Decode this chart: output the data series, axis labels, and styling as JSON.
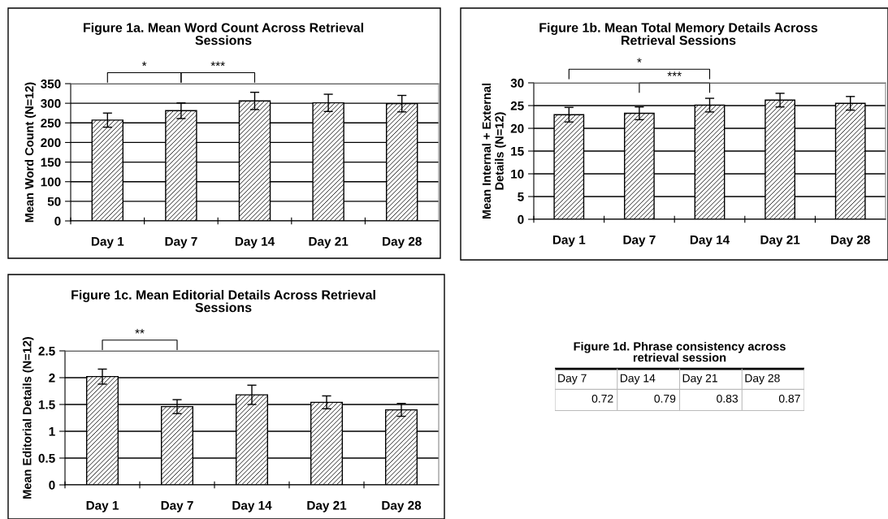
{
  "chart_data": [
    {
      "type": "bar",
      "title": "Figure 1a. Mean Word Count Across Retrieval\nSessions",
      "ylabel": "Mean Word Count (N=12)",
      "categories": [
        "Day 1",
        "Day 7",
        "Day 14",
        "Day 21",
        "Day 28"
      ],
      "values": [
        257,
        281,
        306,
        301,
        299
      ],
      "errors": [
        18,
        20,
        22,
        22,
        21
      ],
      "color": "#000000",
      "ylim": [
        0,
        350
      ],
      "yticks": [
        0,
        50,
        100,
        150,
        200,
        250,
        300,
        350
      ],
      "grid": "y",
      "annotations": [
        "*",
        "***"
      ]
    },
    {
      "type": "bar",
      "title": "Figure 1b. Mean Total Memory Details Across\nRetrieval Sessions",
      "ylabel": "Mean Internal + External\nDetails (N=12)",
      "categories": [
        "Day 1",
        "Day 7",
        "Day 14",
        "Day 21",
        "Day 28"
      ],
      "values": [
        23.0,
        23.3,
        25.1,
        26.2,
        25.5
      ],
      "errors": [
        1.6,
        1.4,
        1.5,
        1.5,
        1.5
      ],
      "color": "#000000",
      "ylim": [
        0,
        30
      ],
      "yticks": [
        0,
        5,
        10,
        15,
        20,
        25,
        30
      ],
      "grid": "y",
      "annotations": [
        "*",
        "***"
      ]
    },
    {
      "type": "bar",
      "title": "Figure 1c. Mean Editorial Details Across Retrieval\nSessions",
      "ylabel": "Mean Editorial Details (N=12)",
      "categories": [
        "Day 1",
        "Day 7",
        "Day 14",
        "Day 21",
        "Day 28"
      ],
      "values": [
        2.02,
        1.46,
        1.68,
        1.54,
        1.4
      ],
      "errors": [
        0.14,
        0.13,
        0.18,
        0.12,
        0.12
      ],
      "color": "#000000",
      "ylim": [
        0,
        2.5
      ],
      "yticks": [
        0,
        0.5,
        1,
        1.5,
        2,
        2.5
      ],
      "grid": "y",
      "annotations": [
        "**"
      ]
    },
    {
      "type": "other",
      "title": "Figure 1d. Phrase consistency across\nretrieval session",
      "categories": [
        "Day 7",
        "Day 14",
        "Day 21",
        "Day 28"
      ],
      "values": [
        0.72,
        0.79,
        0.83,
        0.87
      ],
      "data_labels": true
    }
  ]
}
